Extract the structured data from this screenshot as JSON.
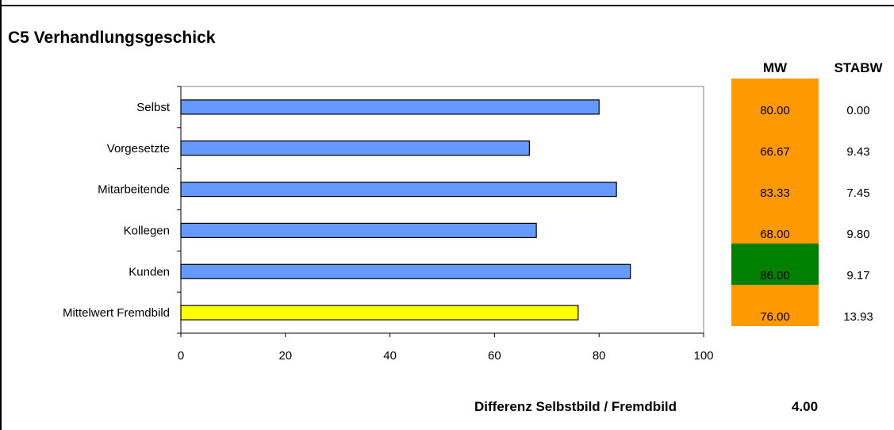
{
  "title": "C5 Verhandlungsgeschick",
  "table": {
    "mw_header": "MW",
    "stabw_header": "STABW",
    "rows": [
      {
        "mw": "80.00",
        "stabw": "0.00",
        "color": "#FF9900"
      },
      {
        "mw": "66.67",
        "stabw": "9.43",
        "color": "#FF9900"
      },
      {
        "mw": "83.33",
        "stabw": "7.45",
        "color": "#FF9900"
      },
      {
        "mw": "68.00",
        "stabw": "9.80",
        "color": "#FF9900"
      },
      {
        "mw": "86.00",
        "stabw": "9.17",
        "color": "#008000"
      },
      {
        "mw": "76.00",
        "stabw": "13.93",
        "color": "#FF9900"
      }
    ]
  },
  "difference": {
    "label": "Differenz Selbstbild / Fremdbild",
    "value": "4.00"
  },
  "chart_data": {
    "type": "bar",
    "orientation": "horizontal",
    "categories": [
      "Selbst",
      "Vorgesetzte",
      "Mitarbeitende",
      "Kollegen",
      "Kunden",
      "Mittelwert Fremdbild"
    ],
    "values": [
      80,
      66.67,
      83.33,
      68,
      86,
      76
    ],
    "bar_colors": [
      "#6699FF",
      "#6699FF",
      "#6699FF",
      "#6699FF",
      "#6699FF",
      "#FFFF00"
    ],
    "xlim": [
      0,
      100
    ],
    "xticks": [
      0,
      20,
      40,
      60,
      80,
      100
    ],
    "grid": false,
    "title": "",
    "xlabel": "",
    "ylabel": ""
  }
}
